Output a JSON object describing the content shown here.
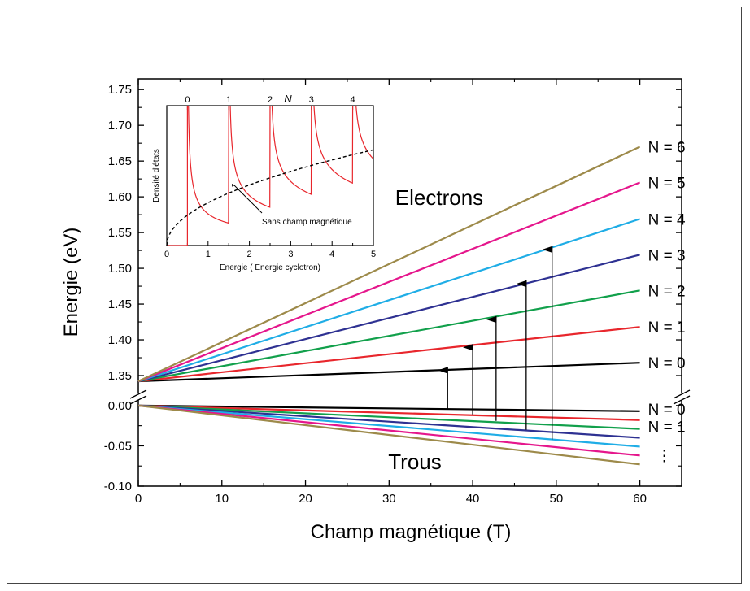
{
  "chart_data": [
    {
      "type": "line",
      "title": "",
      "xlabel": "Champ magnétique (T)",
      "ylabel": "Energie (eV)",
      "xlim": [
        0,
        65
      ],
      "x_ticks": [
        "0",
        "10",
        "20",
        "30",
        "40",
        "50",
        "60"
      ],
      "y_ticks_upper": [
        "1.35",
        "1.40",
        "1.45",
        "1.50",
        "1.55",
        "1.60",
        "1.65",
        "1.70",
        "1.75"
      ],
      "y_ticks_lower": [
        "0.00",
        "-0.05",
        "-0.10"
      ],
      "ylim_upper": [
        1.325,
        1.765
      ],
      "ylim_lower": [
        -0.1,
        0.015
      ],
      "axis_break": true,
      "annotations": {
        "electrons": "Electrons",
        "trous": "Trous",
        "ellipsis": "⋮"
      },
      "series_electrons": [
        {
          "name": "N = 0",
          "color": "#000000",
          "x": [
            0,
            60
          ],
          "y": [
            1.342,
            1.368
          ]
        },
        {
          "name": "N = 1",
          "color": "#e8262c",
          "x": [
            0,
            60
          ],
          "y": [
            1.342,
            1.418
          ]
        },
        {
          "name": "N = 2",
          "color": "#11a04b",
          "x": [
            0,
            60
          ],
          "y": [
            1.342,
            1.469
          ]
        },
        {
          "name": "N = 3",
          "color": "#2e3192",
          "x": [
            0,
            60
          ],
          "y": [
            1.342,
            1.519
          ]
        },
        {
          "name": "N = 4",
          "color": "#1fade6",
          "x": [
            0,
            60
          ],
          "y": [
            1.342,
            1.569
          ]
        },
        {
          "name": "N = 5",
          "color": "#e5168c",
          "x": [
            0,
            60
          ],
          "y": [
            1.342,
            1.62
          ]
        },
        {
          "name": "N = 6",
          "color": "#9d8a4a",
          "x": [
            0,
            60
          ],
          "y": [
            1.342,
            1.67
          ]
        }
      ],
      "series_holes": [
        {
          "name": "N = 0",
          "color": "#000000",
          "x": [
            0,
            60
          ],
          "y": [
            0.0,
            -0.007
          ]
        },
        {
          "name": "N = 1",
          "color": "#e8262c",
          "x": [
            0,
            60
          ],
          "y": [
            0.0,
            -0.018
          ]
        },
        {
          "name": "",
          "color": "#11a04b",
          "x": [
            0,
            60
          ],
          "y": [
            0.0,
            -0.029
          ]
        },
        {
          "name": "",
          "color": "#2e3192",
          "x": [
            0,
            60
          ],
          "y": [
            0.0,
            -0.04
          ]
        },
        {
          "name": "",
          "color": "#1fade6",
          "x": [
            0,
            60
          ],
          "y": [
            0.0,
            -0.051
          ]
        },
        {
          "name": "",
          "color": "#e5168c",
          "x": [
            0,
            60
          ],
          "y": [
            0.0,
            -0.062
          ]
        },
        {
          "name": "",
          "color": "#9d8a4a",
          "x": [
            0,
            60
          ],
          "y": [
            0.0,
            -0.073
          ]
        }
      ],
      "label_series_lower": [
        "N = 0",
        "N = 1"
      ],
      "arrows": [
        {
          "x": 37,
          "y_from": -0.004,
          "y_to": 1.362
        },
        {
          "x": 40,
          "y_from": -0.011,
          "y_to": 1.394
        },
        {
          "x": 42.8,
          "y_from": -0.019,
          "y_to": 1.433
        },
        {
          "x": 46.4,
          "y_from": -0.03,
          "y_to": 1.483
        },
        {
          "x": 49.5,
          "y_from": -0.042,
          "y_to": 1.531
        }
      ]
    },
    {
      "type": "line",
      "title": "",
      "xlabel": "Energie ( Energie cyclotron)",
      "ylabel": "Densité d'états",
      "top_axis_label": "N",
      "xlim": [
        0,
        5
      ],
      "ylim": [
        0,
        1
      ],
      "x_ticks": [
        "0",
        "1",
        "2",
        "3",
        "4",
        "5"
      ],
      "top_ticks": [
        "0",
        "1",
        "2",
        "3",
        "4"
      ],
      "top_tick_positions": [
        0.5,
        1.5,
        2.5,
        3.5,
        4.5
      ],
      "annotation": "Sans champ magnétique",
      "series": [
        {
          "name": "",
          "color": "#e8262c",
          "style": "solid",
          "function": "sum over N of 1/sqrt(E - (N + 0.5))"
        },
        {
          "name": "Sans champ magnétique",
          "color": "#000000",
          "style": "dashed",
          "function": "sqrt(E)"
        }
      ]
    }
  ]
}
